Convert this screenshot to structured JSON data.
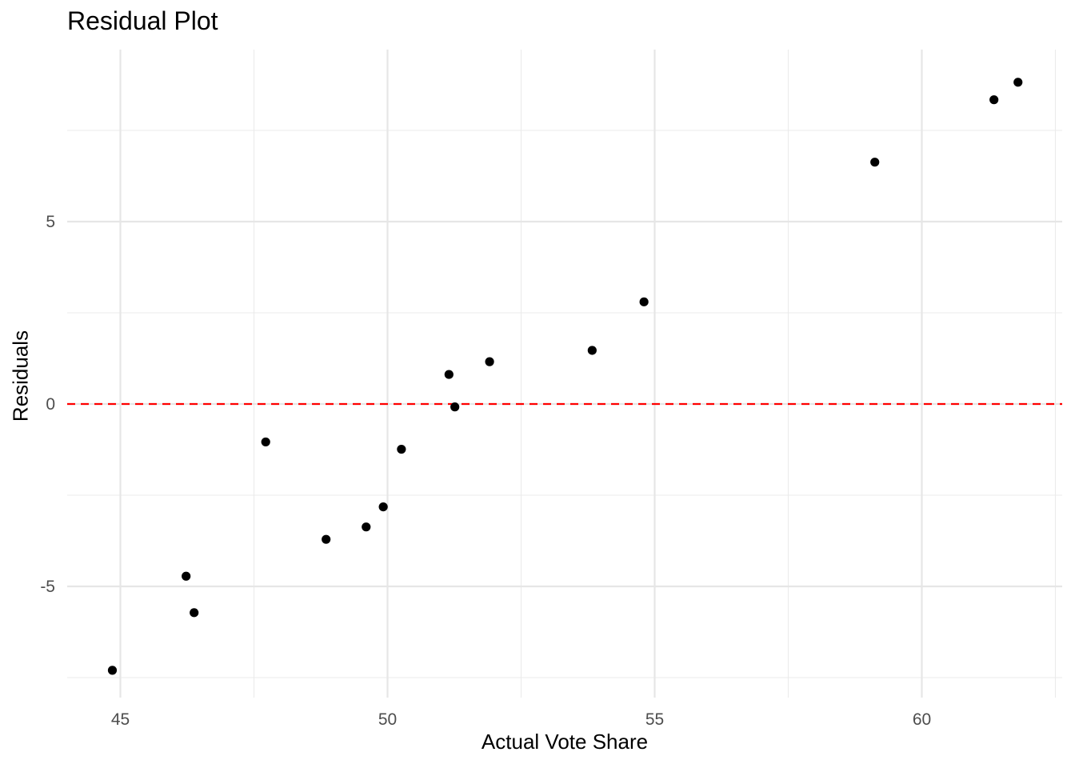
{
  "chart_data": {
    "type": "scatter",
    "title": "Residual Plot",
    "xlabel": "Actual Vote Share",
    "ylabel": "Residuals",
    "xlim": [
      44.0,
      62.5
    ],
    "ylim": [
      -7.5,
      9.5
    ],
    "x_ticks": [
      45,
      50,
      55,
      60
    ],
    "x_tick_labels": [
      "45",
      "50",
      "55",
      "60"
    ],
    "y_ticks": [
      -5,
      0,
      5
    ],
    "y_tick_labels": [
      "-5",
      "0",
      "5"
    ],
    "grid": true,
    "reference_line": {
      "y": 0,
      "style": "dashed",
      "color": "#ff0000"
    },
    "point_color": "#000000",
    "points": [
      {
        "x": 44.85,
        "y": -7.3
      },
      {
        "x": 46.23,
        "y": -4.72
      },
      {
        "x": 46.38,
        "y": -5.72
      },
      {
        "x": 47.72,
        "y": -1.04
      },
      {
        "x": 48.85,
        "y": -3.71
      },
      {
        "x": 49.6,
        "y": -3.37
      },
      {
        "x": 49.92,
        "y": -2.82
      },
      {
        "x": 50.26,
        "y": -1.24
      },
      {
        "x": 51.15,
        "y": 0.81
      },
      {
        "x": 51.26,
        "y": -0.08
      },
      {
        "x": 51.91,
        "y": 1.16
      },
      {
        "x": 53.83,
        "y": 1.47
      },
      {
        "x": 54.8,
        "y": 2.8
      },
      {
        "x": 59.12,
        "y": 6.63
      },
      {
        "x": 61.35,
        "y": 8.34
      },
      {
        "x": 61.8,
        "y": 8.82
      }
    ]
  }
}
